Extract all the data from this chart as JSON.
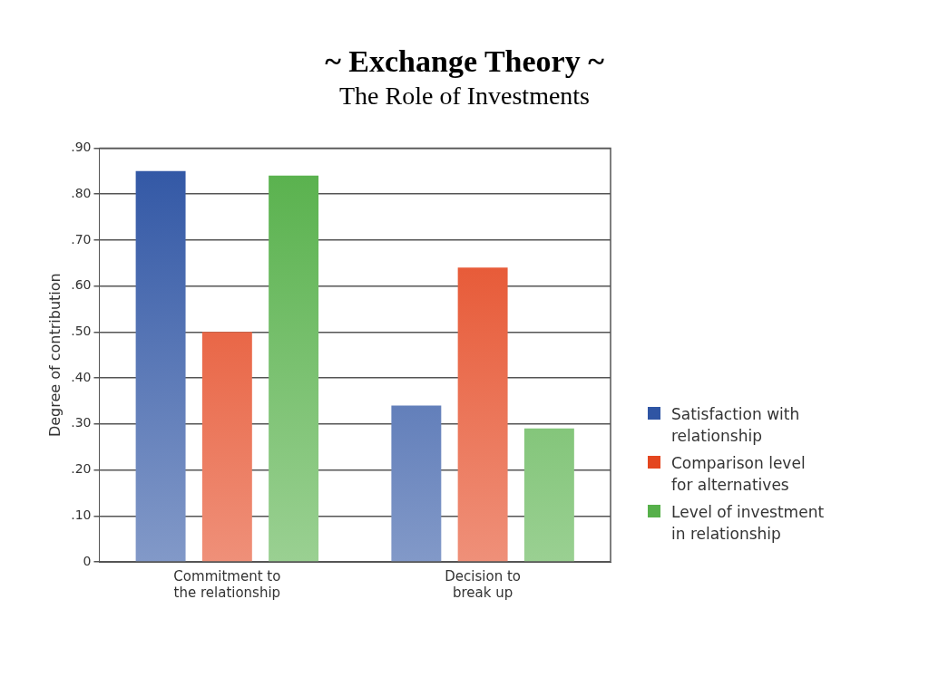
{
  "chart_data": {
    "type": "bar",
    "title": "~ Exchange Theory ~",
    "subtitle": "The Role of Investments",
    "ylabel": "Degree of contribution",
    "categories": [
      "Commitment to the relationship",
      "Decision to break up"
    ],
    "series": [
      {
        "name": "Satisfaction with relationship",
        "color": "#2f55a4",
        "values": [
          0.85,
          0.34
        ]
      },
      {
        "name": "Comparison level for alternatives",
        "color": "#e4461f",
        "values": [
          0.5,
          0.64
        ]
      },
      {
        "name": "Level of investment in relationship",
        "color": "#56b04a",
        "values": [
          0.84,
          0.29
        ]
      }
    ],
    "ylim": [
      0,
      0.9
    ],
    "yticks": [
      0,
      {
        "value": 0.1,
        "label": ".10"
      },
      {
        "value": 0.2,
        "label": ".20"
      },
      {
        "value": 0.3,
        "label": ".30"
      },
      {
        "value": 0.4,
        "label": ".40"
      },
      {
        "value": 0.5,
        "label": ".50"
      },
      {
        "value": 0.6,
        "label": ".60"
      },
      {
        "value": 0.7,
        "label": ".70"
      },
      {
        "value": 0.8,
        "label": ".80"
      },
      {
        "value": 0.9,
        "label": ".90"
      }
    ],
    "grid": "y",
    "legend": "right"
  }
}
